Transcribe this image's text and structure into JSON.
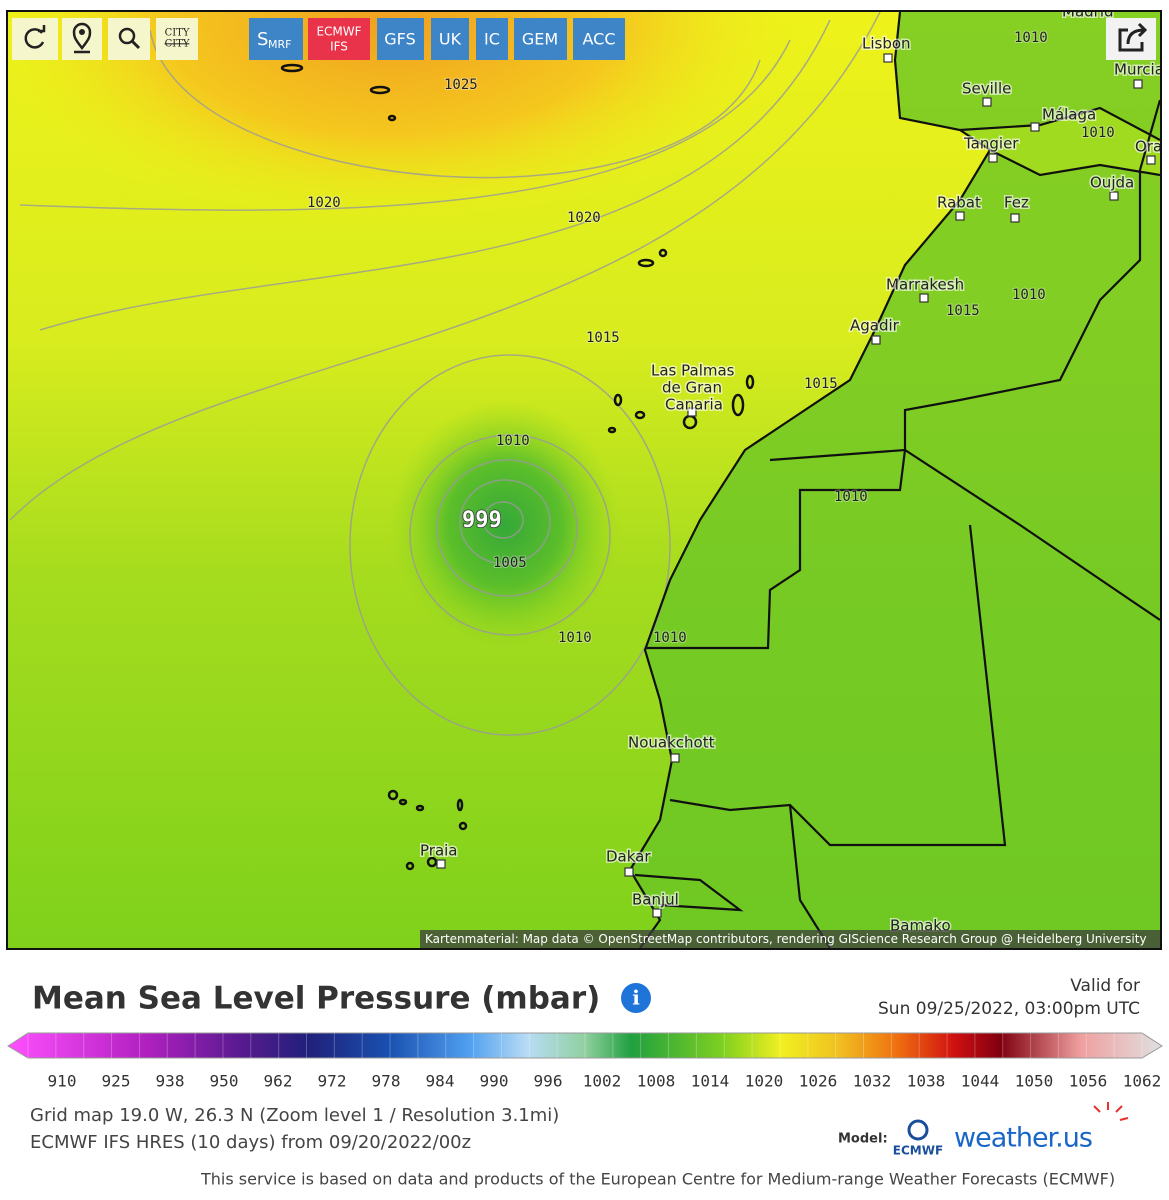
{
  "toolbar": {
    "city_icon": [
      "CITY",
      "CITY"
    ],
    "models": [
      {
        "main": "S",
        "sub": "MRF"
      },
      {
        "main": "ECMWF",
        "sub": "IFS"
      },
      {
        "main": "GFS"
      },
      {
        "main": "UK"
      },
      {
        "main": "IC"
      },
      {
        "main": "GEM"
      },
      {
        "main": "ACC"
      }
    ]
  },
  "map": {
    "cities": [
      "Madrid",
      "Lisbon",
      "Seville",
      "Murcia",
      "Málaga",
      "Tangier",
      "Oran",
      "Oujda",
      "Rabat",
      "Fez",
      "Marrakesh",
      "Agadir",
      "Las Palmas",
      "de Gran",
      "Canaria",
      "Nouakchott",
      "Praia",
      "Dakar",
      "Banjul",
      "Bamako"
    ],
    "isobar_labels": [
      "1025",
      "1020",
      "1020",
      "1015",
      "1015",
      "1010",
      "999",
      "1005",
      "1010",
      "1010",
      "1010",
      "1010",
      "1010",
      "1010",
      "1015"
    ],
    "attribution": "Kartenmaterial: Map data © OpenStreetMap contributors, rendering GIScience Research Group @ Heidelberg University"
  },
  "legend": {
    "title": "Mean Sea Level Pressure (mbar)",
    "valid_label": "Valid for",
    "valid_time": "Sun 09/25/2022, 03:00pm UTC",
    "ticks": [
      910,
      925,
      938,
      950,
      962,
      972,
      978,
      984,
      990,
      996,
      1002,
      1008,
      1014,
      1020,
      1026,
      1032,
      1038,
      1044,
      1050,
      1056,
      1062
    ]
  },
  "info": {
    "grid": "Grid map 19.0 W, 26.3 N (Zoom level 1 / Resolution 3.1mi)",
    "run": "ECMWF IFS HRES (10 days) from 09/20/2022/00z",
    "model_label": "Model:",
    "model_logo": "ECMWF",
    "brand": "weather.us",
    "footer": "This service is based on data and products of the European Centre for Medium-range Weather Forecasts (ECMWF)"
  }
}
